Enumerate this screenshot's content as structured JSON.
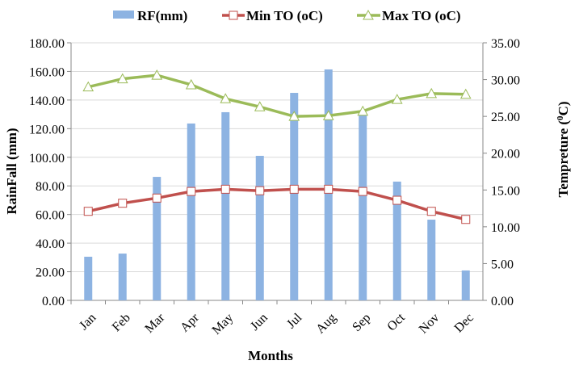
{
  "chart_data": {
    "type": "bar+line",
    "categories": [
      "Jan",
      "Feb",
      "Mar",
      "Apr",
      "May",
      "Jun",
      "Jul",
      "Aug",
      "Sep",
      "Oct",
      "Nov",
      "Dec"
    ],
    "series": [
      {
        "name": "RF(mm)",
        "type": "bar",
        "axis": "left",
        "color": "#8db3e2",
        "values": [
          30.5,
          32.7,
          86.3,
          123.6,
          131.5,
          101.0,
          145.0,
          161.4,
          129.8,
          83.0,
          56.4,
          20.9
        ]
      },
      {
        "name": "Min TO (oC)",
        "type": "line",
        "axis": "right",
        "color": "#c0504d",
        "marker": "square",
        "values": [
          12.1,
          13.2,
          13.9,
          14.8,
          15.1,
          14.9,
          15.1,
          15.1,
          14.8,
          13.6,
          12.1,
          11.0
        ]
      },
      {
        "name": "Max TO (oC)",
        "type": "line",
        "axis": "right",
        "color": "#9bbb59",
        "marker": "triangle",
        "values": [
          29.0,
          30.1,
          30.6,
          29.3,
          27.4,
          26.3,
          25.0,
          25.1,
          25.7,
          27.3,
          28.1,
          28.0
        ]
      }
    ],
    "xlabel": "Months",
    "ylabel": "RainFall (mm)",
    "y2label": {
      "pre": "Tempreture (",
      "sup": "0",
      "post": "C)"
    },
    "ylim": [
      0,
      180
    ],
    "y2lim": [
      0,
      35
    ],
    "yticks": [
      "0.00",
      "20.00",
      "40.00",
      "60.00",
      "80.00",
      "100.00",
      "120.00",
      "140.00",
      "160.00",
      "180.00"
    ],
    "y2ticks": [
      "0.00",
      "5.00",
      "10.00",
      "15.00",
      "20.00",
      "25.00",
      "30.00",
      "35.00"
    ],
    "grid": true,
    "legend": "top"
  }
}
